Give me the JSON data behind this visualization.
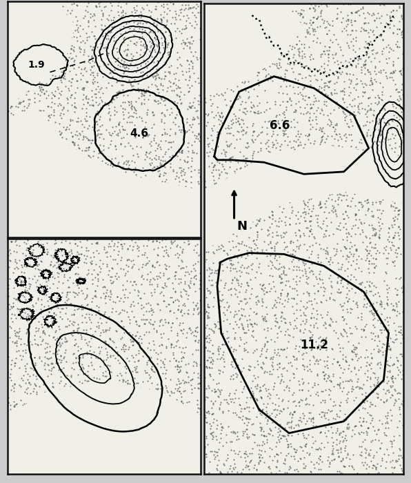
{
  "open_color": "#f0efe8",
  "figure_bg": "#cccccc",
  "border_color": "#111111",
  "stipple_color": "#444444",
  "stipple_alpha": 0.7,
  "stipple_size": 2.5,
  "labels": [
    "1.9",
    "4.6",
    "6.6",
    "11.2"
  ],
  "label_fontsize_small": 10,
  "label_fontsize_large": 12,
  "contour_lw": 1.4,
  "home_range_lw": 1.8
}
